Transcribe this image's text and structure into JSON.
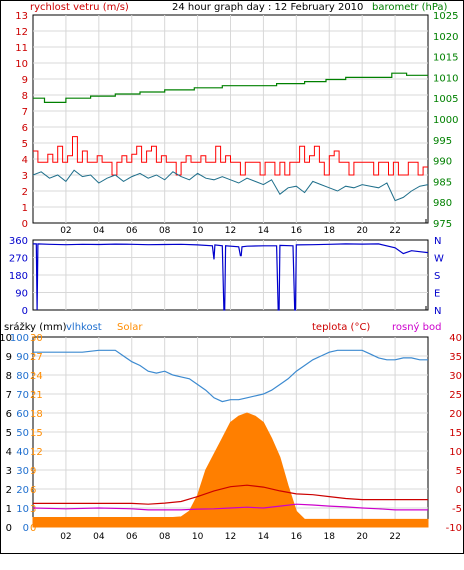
{
  "chart_data": [
    {
      "type": "line",
      "panel": "wind-pressure",
      "title": "24 hour graph day : 12 February 2010",
      "left_label": "rychlost vetru (m/s)",
      "right_label": "barometr (hPa)",
      "ylim_left": [
        0,
        13
      ],
      "yticks_left": [
        "0",
        "1",
        "2",
        "3",
        "4",
        "5",
        "6",
        "7",
        "8",
        "9",
        "10",
        "11",
        "12",
        "13"
      ],
      "ylim_right": [
        975,
        1025
      ],
      "yticks_right": [
        "975",
        "980",
        "985",
        "990",
        "995",
        "1000",
        "1005",
        "1010",
        "1015",
        "1020",
        "1025"
      ],
      "xlim": [
        0,
        24
      ],
      "xticks": [
        "02",
        "04",
        "06",
        "08",
        "10",
        "12",
        "14",
        "16",
        "18",
        "20",
        "22"
      ],
      "colors": {
        "gust": "#ff0000",
        "speed": "#1f6f8b",
        "pressure": "#008000"
      },
      "series": [
        {
          "key": "pressure",
          "axis": "right",
          "x": [
            0,
            0.7,
            0.7,
            2.0,
            2.0,
            3.5,
            3.5,
            5.0,
            5.0,
            6.5,
            6.5,
            8.0,
            8.0,
            9.8,
            9.8,
            11.5,
            11.5,
            13.0,
            13.0,
            14.8,
            14.8,
            16.5,
            16.5,
            17.8,
            17.8,
            19.0,
            19.0,
            20.2,
            20.2,
            21.8,
            21.8,
            22.7,
            22.7,
            24.0
          ],
          "y": [
            1005,
            1005,
            1004,
            1004,
            1005,
            1005,
            1005.5,
            1005.5,
            1006,
            1006,
            1006.5,
            1006.5,
            1007,
            1007,
            1007.5,
            1007.5,
            1008,
            1008,
            1008,
            1008,
            1008.5,
            1008.5,
            1009,
            1009,
            1009.5,
            1009.5,
            1010,
            1010,
            1010,
            1010,
            1011,
            1011,
            1010.5,
            1010.5
          ]
        },
        {
          "key": "gust",
          "axis": "left",
          "x": [
            0,
            0.3,
            0.6,
            0.9,
            1.2,
            1.5,
            1.8,
            2.1,
            2.4,
            2.7,
            3.0,
            3.3,
            3.6,
            3.9,
            4.2,
            4.5,
            4.8,
            5.1,
            5.4,
            5.7,
            6.0,
            6.3,
            6.6,
            6.9,
            7.2,
            7.5,
            7.8,
            8.1,
            8.4,
            8.7,
            9.0,
            9.3,
            9.6,
            9.9,
            10.2,
            10.5,
            10.8,
            11.1,
            11.4,
            11.7,
            12.0,
            12.3,
            12.6,
            12.9,
            13.2,
            13.5,
            13.8,
            14.1,
            14.4,
            14.7,
            15.0,
            15.3,
            15.6,
            15.9,
            16.2,
            16.5,
            16.8,
            17.1,
            17.4,
            17.7,
            18.0,
            18.3,
            18.6,
            18.9,
            19.2,
            19.5,
            19.8,
            20.1,
            20.4,
            20.7,
            21.0,
            21.3,
            21.6,
            21.9,
            22.2,
            22.5,
            22.8,
            23.1,
            23.4,
            23.7,
            24.0
          ],
          "y": [
            4.5,
            3.8,
            3.8,
            4.3,
            3.8,
            4.8,
            3.8,
            4.2,
            5.4,
            3.8,
            4.5,
            3.8,
            3.8,
            4.2,
            3.8,
            3.8,
            3.0,
            3.8,
            4.2,
            3.8,
            4.3,
            4.8,
            3.8,
            4.5,
            4.8,
            3.8,
            4.2,
            3.8,
            3.8,
            3.0,
            3.8,
            4.2,
            3.8,
            3.8,
            4.2,
            3.8,
            3.8,
            4.8,
            3.8,
            4.2,
            3.8,
            3.8,
            3.0,
            3.8,
            3.8,
            3.8,
            3.0,
            3.8,
            3.8,
            3.0,
            3.8,
            3.0,
            3.8,
            3.8,
            4.8,
            3.8,
            4.2,
            4.8,
            3.8,
            3.0,
            4.2,
            4.5,
            3.8,
            3.8,
            3.0,
            3.8,
            3.8,
            3.8,
            3.8,
            3.0,
            3.8,
            3.8,
            3.0,
            3.8,
            3.0,
            3.0,
            3.8,
            3.8,
            3.0,
            3.5,
            3.5
          ]
        },
        {
          "key": "speed",
          "axis": "left",
          "x": [
            0,
            0.5,
            1.0,
            1.5,
            2.0,
            2.5,
            3.0,
            3.5,
            4.0,
            4.5,
            5.0,
            5.5,
            6.0,
            6.5,
            7.0,
            7.5,
            8.0,
            8.5,
            9.0,
            9.5,
            10.0,
            10.5,
            11.0,
            11.5,
            12.0,
            12.5,
            13.0,
            13.5,
            14.0,
            14.5,
            15.0,
            15.5,
            16.0,
            16.5,
            17.0,
            17.5,
            18.0,
            18.5,
            19.0,
            19.5,
            20.0,
            20.5,
            21.0,
            21.5,
            22.0,
            22.5,
            23.0,
            23.5,
            24.0
          ],
          "y": [
            3.0,
            3.2,
            2.8,
            3.0,
            2.6,
            3.3,
            2.9,
            3.0,
            2.5,
            2.8,
            3.0,
            2.6,
            2.9,
            3.1,
            2.8,
            3.0,
            2.7,
            3.2,
            2.9,
            2.7,
            3.1,
            2.8,
            2.7,
            2.9,
            2.7,
            2.5,
            2.8,
            2.6,
            2.4,
            2.7,
            1.8,
            2.2,
            2.3,
            1.9,
            2.6,
            2.4,
            2.2,
            2.0,
            2.3,
            2.2,
            2.4,
            2.3,
            2.2,
            2.5,
            1.4,
            1.6,
            2.0,
            2.3,
            2.4
          ]
        }
      ]
    },
    {
      "type": "line",
      "panel": "wind-direction",
      "ylim_left": [
        0,
        360
      ],
      "yticks_left": [
        "0",
        "90",
        "180",
        "270",
        "360"
      ],
      "compass": [
        "N",
        "W",
        "S",
        "E",
        "N"
      ],
      "xlim": [
        0,
        24
      ],
      "colors": {
        "direction": "#0000cc"
      },
      "series": [
        {
          "key": "direction",
          "x": [
            0,
            0.2,
            0.25,
            0.3,
            1.0,
            2.0,
            3.0,
            4.0,
            5.0,
            6.0,
            7.0,
            8.0,
            9.0,
            10.0,
            10.9,
            11.0,
            11.05,
            11.5,
            11.6,
            11.65,
            11.7,
            12.5,
            12.6,
            12.65,
            12.7,
            13.0,
            14.0,
            14.8,
            14.9,
            14.95,
            15.0,
            15.8,
            15.9,
            15.95,
            16.0,
            17.0,
            18.0,
            19.0,
            20.0,
            21.0,
            22.0,
            22.5,
            23.0,
            23.5,
            24.0
          ],
          "y": [
            340,
            340,
            0,
            340,
            338,
            336,
            338,
            337,
            339,
            338,
            336,
            337,
            338,
            335,
            330,
            260,
            335,
            330,
            0,
            0,
            330,
            325,
            280,
            280,
            325,
            328,
            330,
            330,
            0,
            0,
            332,
            330,
            0,
            0,
            335,
            336,
            338,
            340,
            339,
            340,
            320,
            290,
            305,
            300,
            295
          ]
        }
      ]
    },
    {
      "type": "area",
      "panel": "humidity-temperature",
      "labels": {
        "precip": "srážky (mm)",
        "humidity": "vlhkost",
        "solar": "Solar",
        "temp": "teplota (°C)",
        "dew": "rosný bod"
      },
      "ylim_precip": [
        0,
        10
      ],
      "yticks_precip": [
        "0",
        "1",
        "2",
        "3",
        "4",
        "5",
        "6",
        "7",
        "8",
        "9",
        "10"
      ],
      "ylim_humidity": [
        0,
        100
      ],
      "yticks_humidity": [
        "0",
        "10",
        "20",
        "30",
        "40",
        "50",
        "60",
        "70",
        "80",
        "90",
        "100"
      ],
      "ylim_solar": [
        0,
        30
      ],
      "yticks_solar": [
        "0",
        "3",
        "6",
        "9",
        "12",
        "15",
        "18",
        "21",
        "24",
        "27",
        "30"
      ],
      "ylim_temp": [
        -10,
        40
      ],
      "yticks_temp": [
        "-10",
        "-5",
        "0",
        "5",
        "10",
        "15",
        "20",
        "25",
        "30",
        "35",
        "40"
      ],
      "xlim": [
        0,
        24
      ],
      "xticks": [
        "02",
        "04",
        "06",
        "08",
        "10",
        "12",
        "14",
        "16",
        "18",
        "20",
        "22"
      ],
      "colors": {
        "humidity": "#3c8ad0",
        "solar": "#ff7f00",
        "temp": "#cc0000",
        "dew": "#cc00cc"
      },
      "series": [
        {
          "key": "humidity",
          "axis": "humidity",
          "x": [
            0,
            1.0,
            2.0,
            3.0,
            4.0,
            5.0,
            5.5,
            6.0,
            6.5,
            7.0,
            7.5,
            8.0,
            8.5,
            9.0,
            9.5,
            10.0,
            10.5,
            11.0,
            11.5,
            12.0,
            12.5,
            13.0,
            13.5,
            14.0,
            14.5,
            15.0,
            15.5,
            16.0,
            16.5,
            17.0,
            17.5,
            18.0,
            18.5,
            19.0,
            19.5,
            20.0,
            20.5,
            21.0,
            21.5,
            22.0,
            22.5,
            23.0,
            23.5,
            24.0
          ],
          "y": [
            92,
            92,
            92,
            92,
            93,
            93,
            90,
            87,
            85,
            82,
            81,
            82,
            80,
            79,
            78,
            75,
            72,
            68,
            66,
            67,
            67,
            68,
            69,
            70,
            72,
            75,
            78,
            82,
            85,
            88,
            90,
            92,
            93,
            93,
            93,
            93,
            91,
            89,
            88,
            88,
            89,
            89,
            88,
            88
          ]
        },
        {
          "key": "solar",
          "axis": "solar",
          "x": [
            0,
            8.0,
            8.5,
            9.0,
            9.5,
            10.0,
            10.5,
            11.0,
            11.5,
            12.0,
            12.5,
            13.0,
            13.5,
            14.0,
            14.5,
            15.0,
            15.5,
            16.0,
            16.5,
            24.0
          ],
          "y": [
            1.5,
            1.5,
            1.5,
            1.6,
            2.5,
            5.0,
            9.0,
            11.5,
            14.0,
            16.5,
            17.5,
            18.0,
            17.5,
            16.5,
            14.0,
            11.0,
            6.5,
            2.5,
            1.2,
            1.2
          ]
        },
        {
          "key": "temp",
          "axis": "temp",
          "x": [
            0,
            2.0,
            4.0,
            6.0,
            7.0,
            8.0,
            9.0,
            10.0,
            11.0,
            12.0,
            13.0,
            14.0,
            15.0,
            16.0,
            17.0,
            18.0,
            19.0,
            20.0,
            21.0,
            22.0,
            24.0
          ],
          "y": [
            -3.8,
            -3.8,
            -3.8,
            -3.8,
            -4.0,
            -3.7,
            -3.3,
            -2.0,
            -0.5,
            0.6,
            1.0,
            0.5,
            -0.5,
            -1.3,
            -1.5,
            -2.0,
            -2.5,
            -2.8,
            -2.8,
            -2.8,
            -2.8
          ]
        },
        {
          "key": "dew",
          "axis": "temp",
          "x": [
            0,
            2.0,
            4.0,
            6.0,
            7.0,
            8.0,
            9.0,
            10.0,
            11.0,
            12.0,
            13.0,
            14.0,
            15.0,
            16.0,
            17.0,
            18.0,
            19.0,
            20.0,
            21.0,
            22.0,
            24.0
          ],
          "y": [
            -5.0,
            -5.2,
            -5.0,
            -5.2,
            -5.5,
            -5.5,
            -5.5,
            -5.3,
            -5.2,
            -5.0,
            -4.8,
            -5.0,
            -4.5,
            -4.0,
            -4.2,
            -4.5,
            -4.7,
            -5.0,
            -5.2,
            -5.5,
            -5.5
          ]
        }
      ]
    }
  ]
}
